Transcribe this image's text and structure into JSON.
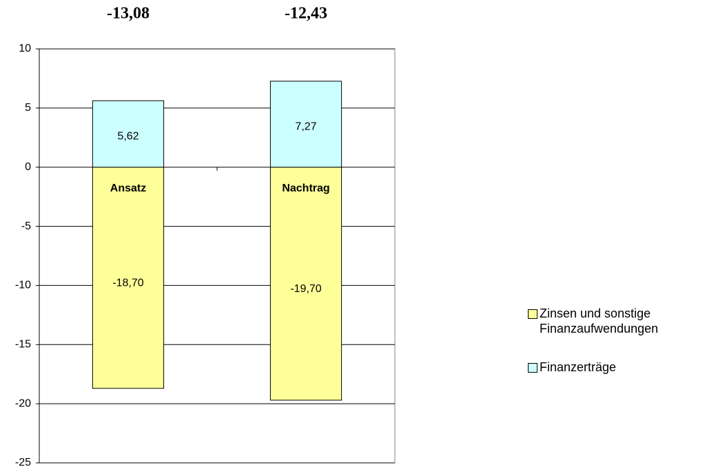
{
  "chart_data": {
    "type": "bar",
    "stacked": true,
    "categories": [
      "Ansatz",
      "Nachtrag"
    ],
    "series": [
      {
        "name": "Zinsen und sonstige Finanzaufwendungen",
        "color": "#ffff99",
        "values": [
          -18.7,
          -19.7
        ],
        "value_labels": [
          "-18,70",
          "-19,70"
        ]
      },
      {
        "name": "Finanzerträge",
        "color": "#ccffff",
        "values": [
          5.62,
          7.27
        ],
        "value_labels": [
          "5,62",
          "7,27"
        ]
      }
    ],
    "totals": {
      "values": [
        -13.08,
        -12.43
      ],
      "value_labels": [
        "-13,08",
        "-12,43"
      ]
    },
    "ylim": [
      -25,
      10
    ],
    "yticks": [
      10,
      5,
      0,
      -5,
      -10,
      -15,
      -20,
      -25
    ],
    "grid": true,
    "legend": "right"
  }
}
